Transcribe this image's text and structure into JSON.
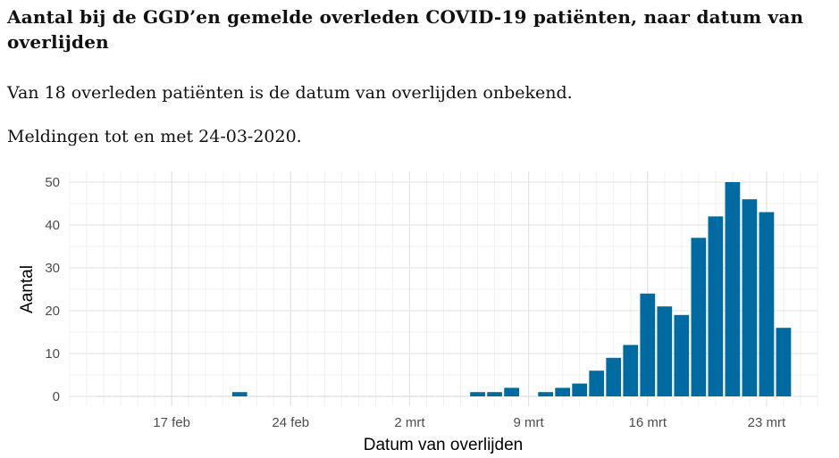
{
  "header": {
    "title": "Aantal bij de GGD’en gemelde overleden COVID-19 patiënten, naar datum van overlijden",
    "subtitle1": "Van 18 overleden patiënten is de datum van overlijden onbekend.",
    "subtitle2": "Meldingen tot en met 24-03-2020."
  },
  "chart_data": {
    "type": "bar",
    "title": "Aantal bij de GGD’en gemelde overleden COVID-19 patiënten, naar datum van overlijden",
    "xlabel": "Datum van overlijden",
    "ylabel": "Aantal",
    "ylim": [
      0,
      50
    ],
    "yticks": [
      0,
      10,
      20,
      30,
      40,
      50
    ],
    "xlim": [
      "2020-02-11",
      "2020-03-26"
    ],
    "xticks": [
      {
        "date": "2020-02-17",
        "label": "17 feb"
      },
      {
        "date": "2020-02-24",
        "label": "24 feb"
      },
      {
        "date": "2020-03-02",
        "label": "2 mrt"
      },
      {
        "date": "2020-03-09",
        "label": "9 mrt"
      },
      {
        "date": "2020-03-16",
        "label": "16 mrt"
      },
      {
        "date": "2020-03-23",
        "label": "23 mrt"
      }
    ],
    "color": "#006ba0",
    "grid": true,
    "x": [
      "2020-02-13",
      "2020-02-14",
      "2020-02-15",
      "2020-02-16",
      "2020-02-17",
      "2020-02-18",
      "2020-02-19",
      "2020-02-20",
      "2020-02-21",
      "2020-02-22",
      "2020-02-23",
      "2020-02-24",
      "2020-02-25",
      "2020-02-26",
      "2020-02-27",
      "2020-02-28",
      "2020-02-29",
      "2020-03-01",
      "2020-03-02",
      "2020-03-03",
      "2020-03-04",
      "2020-03-05",
      "2020-03-06",
      "2020-03-07",
      "2020-03-08",
      "2020-03-09",
      "2020-03-10",
      "2020-03-11",
      "2020-03-12",
      "2020-03-13",
      "2020-03-14",
      "2020-03-15",
      "2020-03-16",
      "2020-03-17",
      "2020-03-18",
      "2020-03-19",
      "2020-03-20",
      "2020-03-21",
      "2020-03-22",
      "2020-03-23",
      "2020-03-24"
    ],
    "values": [
      0,
      0,
      0,
      0,
      0,
      0,
      0,
      0,
      1,
      0,
      0,
      0,
      0,
      0,
      0,
      0,
      0,
      0,
      0,
      0,
      0,
      0,
      1,
      1,
      2,
      0,
      1,
      2,
      3,
      6,
      9,
      12,
      24,
      21,
      19,
      37,
      42,
      50,
      46,
      43,
      16
    ]
  }
}
